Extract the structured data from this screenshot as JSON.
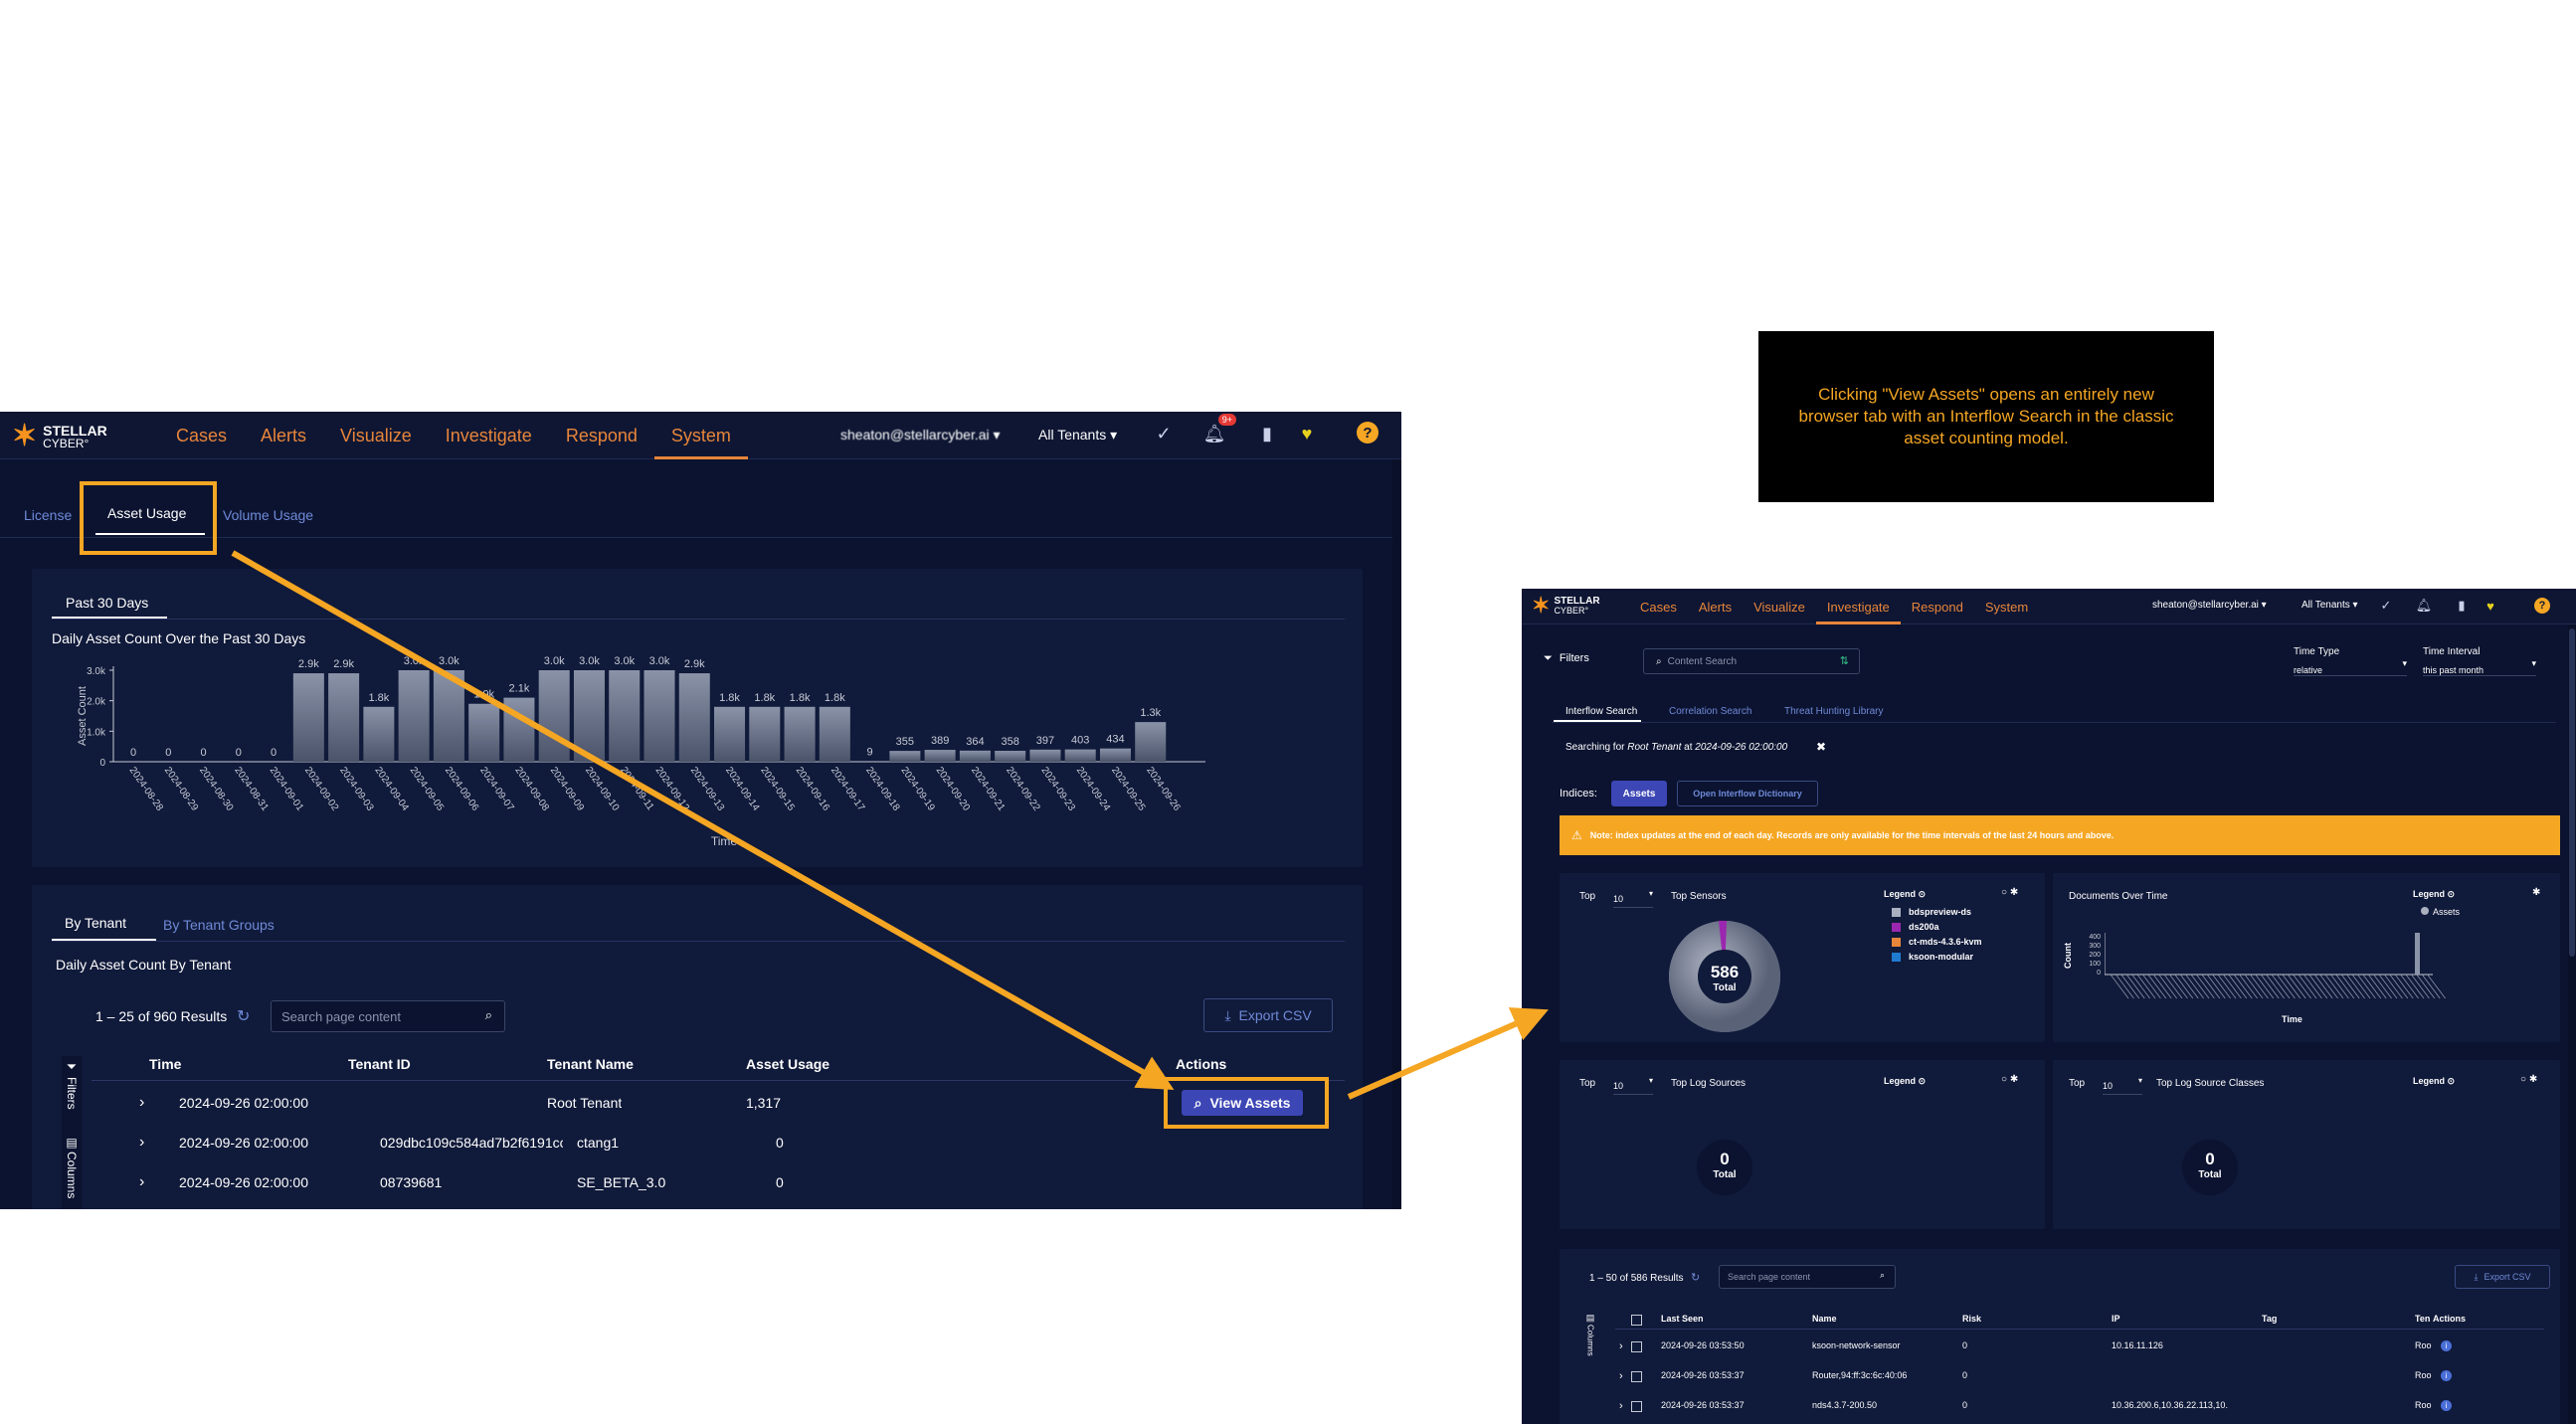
{
  "callout": {
    "text": "Clicking \"View Assets\" opens an entirely new browser tab with an Interflow Search in the classic asset counting model."
  },
  "left": {
    "logo": {
      "line1": "STELLAR",
      "line2": "CYBER°"
    },
    "nav": {
      "items": [
        "Cases",
        "Alerts",
        "Visualize",
        "Investigate",
        "Respond",
        "System"
      ],
      "active": "System"
    },
    "user": "sheaton@stellarcyber.ai ▾",
    "tenants": "All Tenants ▾",
    "notif_badge": "9+",
    "tabs": {
      "license": "License",
      "asset_usage": "Asset Usage",
      "volume_usage": "Volume Usage"
    },
    "period_tab": "Past 30 Days",
    "chart_title": "Daily Asset Count Over the Past 30 Days",
    "chart_data": {
      "type": "bar",
      "title": "Daily Asset Count Over the Past 30 Days",
      "xlabel": "Time",
      "ylabel": "Asset Count",
      "ylim": [
        0,
        3000
      ],
      "yticks": [
        "0",
        "1.0k",
        "2.0k",
        "3.0k"
      ],
      "categories": [
        "2024-08-28",
        "2024-08-29",
        "2024-08-30",
        "2024-08-31",
        "2024-09-01",
        "2024-09-02",
        "2024-09-03",
        "2024-09-04",
        "2024-09-05",
        "2024-09-06",
        "2024-09-07",
        "2024-09-08",
        "2024-09-09",
        "2024-09-10",
        "2024-09-11",
        "2024-09-12",
        "2024-09-13",
        "2024-09-14",
        "2024-09-15",
        "2024-09-16",
        "2024-09-17",
        "2024-09-18",
        "2024-09-19",
        "2024-09-20",
        "2024-09-21",
        "2024-09-22",
        "2024-09-23",
        "2024-09-24",
        "2024-09-25",
        "2024-09-26"
      ],
      "values": [
        0,
        0,
        0,
        0,
        0,
        2900,
        2900,
        1800,
        3000,
        3000,
        1900,
        2100,
        3000,
        3000,
        3000,
        3000,
        2900,
        1800,
        1800,
        1800,
        1800,
        9,
        355,
        389,
        364,
        358,
        397,
        403,
        434,
        1300
      ],
      "labels": [
        "0",
        "0",
        "0",
        "0",
        "0",
        "2.9k",
        "2.9k",
        "1.8k",
        "3.0k",
        "3.0k",
        "1.9k",
        "2.1k",
        "3.0k",
        "3.0k",
        "3.0k",
        "3.0k",
        "2.9k",
        "1.8k",
        "1.8k",
        "1.8k",
        "1.8k",
        "9",
        "355",
        "389",
        "364",
        "358",
        "397",
        "403",
        "434",
        "1.3k"
      ]
    },
    "tenant_tabs": {
      "by_tenant": "By Tenant",
      "by_groups": "By Tenant Groups"
    },
    "table_title": "Daily Asset Count By Tenant",
    "results": "1 – 25 of 960 Results",
    "search_placeholder": "Search page content",
    "export": "Export CSV",
    "side_filters": "Filters",
    "side_columns": "Columns",
    "columns": [
      "Time",
      "Tenant ID",
      "Tenant Name",
      "Asset Usage",
      "Actions"
    ],
    "rows": [
      {
        "time": "2024-09-26 02:00:00",
        "tenant_id": "",
        "tenant_name": "Root Tenant",
        "usage": "1,317"
      },
      {
        "time": "2024-09-26 02:00:00",
        "tenant_id": "029dbc109c584ad7b2f6191cc",
        "tenant_name": "ctang1",
        "usage": "0"
      },
      {
        "time": "2024-09-26 02:00:00",
        "tenant_id": "08739681",
        "tenant_name": "SE_BETA_3.0",
        "usage": "0"
      }
    ],
    "view_assets": "View Assets"
  },
  "right": {
    "logo": {
      "line1": "STELLAR",
      "line2": "CYBER°"
    },
    "nav": {
      "items": [
        "Cases",
        "Alerts",
        "Visualize",
        "Investigate",
        "Respond",
        "System"
      ],
      "active": "Investigate"
    },
    "user": "sheaton@stellarcyber.ai ▾",
    "tenants": "All Tenants ▾",
    "filters": "Filters",
    "content_search": "Content Search",
    "time_type_label": "Time Type",
    "time_type_value": "relative",
    "time_interval_label": "Time Interval",
    "time_interval_value": "this past month",
    "tabs": [
      "Interflow Search",
      "Correlation Search",
      "Threat Hunting Library"
    ],
    "searching_prefix": "Searching for ",
    "searching_tenant": "Root Tenant",
    "searching_mid": " at ",
    "searching_time": "2024-09-26 02:00:00",
    "indices_label": "Indices:",
    "assets_btn": "Assets",
    "dictionary_btn": "Open Interflow Dictionary",
    "note": "Note: index updates at the end of each day. Records are only available for the time intervals of the last 24 hours and above.",
    "top_label": "Top",
    "top_value": "10",
    "top_sensors": "Top Sensors",
    "legend": "Legend",
    "sensor_legend": [
      {
        "name": "bdspreview-ds",
        "color": "#aab0c0"
      },
      {
        "name": "ds200a",
        "color": "#9b27b0"
      },
      {
        "name": "ct-mds-4.3.6-kvm",
        "color": "#e8853a"
      },
      {
        "name": "ksoon-modular",
        "color": "#1f7bd0"
      }
    ],
    "sensors_total": "586",
    "total_label": "Total",
    "docs_over_time": "Documents Over Time",
    "docs_legend": "Assets",
    "docs_ylabel": "Count",
    "docs_xlabel": "Time",
    "docs_yticks": [
      "400",
      "300",
      "200",
      "100",
      "0"
    ],
    "top_log_sources": "Top Log Sources",
    "log_sources_total": "0",
    "top_log_source_classes": "Top Log Source Classes",
    "log_classes_total": "0",
    "results": "1 – 50 of 586 Results",
    "search_placeholder": "Search page content",
    "export": "Export CSV",
    "side_columns": "Columns",
    "columns": [
      "Last Seen",
      "Name",
      "Risk",
      "IP",
      "Tag",
      "Ten",
      "Actions"
    ],
    "rows": [
      {
        "last_seen": "2024-09-26 03:53:50",
        "name": "ksoon-network-sensor",
        "risk": "0",
        "ip": "10.16.11.126",
        "tenant": "Roo"
      },
      {
        "last_seen": "2024-09-26 03:53:37",
        "name": "Router,94:ff:3c:6c:40:06",
        "risk": "0",
        "ip": "",
        "tenant": "Roo"
      },
      {
        "last_seen": "2024-09-26 03:53:37",
        "name": "nds4.3.7-200.50",
        "risk": "0",
        "ip": "10.36.200.6,10.36.22.113,10.",
        "tenant": "Roo"
      }
    ]
  }
}
